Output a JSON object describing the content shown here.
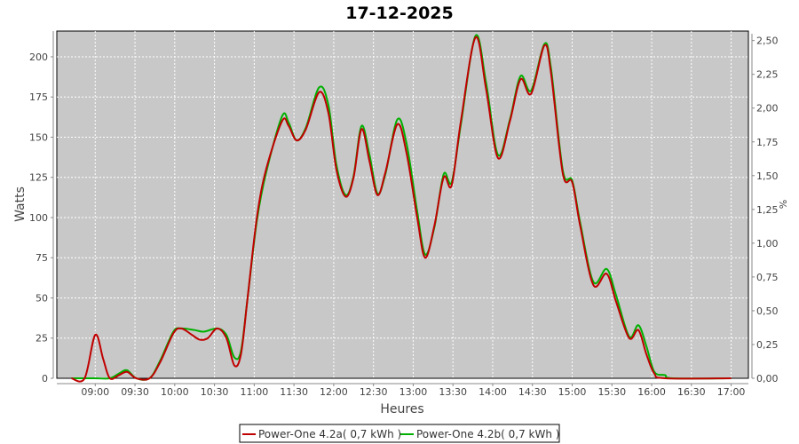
{
  "chart_data": {
    "type": "line",
    "title": "17-12-2025",
    "xlabel": "Heures",
    "ylabel": "Watts",
    "y2label": "%",
    "ylim": [
      0,
      216
    ],
    "y2lim": [
      0,
      2.57
    ],
    "xlim": [
      "08:31",
      "17:13"
    ],
    "grid": true,
    "legend": "bottom",
    "x_ticks": [
      "09:00",
      "09:30",
      "10:00",
      "10:30",
      "11:00",
      "11:30",
      "12:00",
      "12:30",
      "13:00",
      "13:30",
      "14:00",
      "14:30",
      "15:00",
      "15:30",
      "16:00",
      "16:30",
      "17:00"
    ],
    "y_ticks": [
      0,
      25,
      50,
      75,
      100,
      125,
      150,
      175,
      200
    ],
    "y2_ticks": [
      "0,00",
      "0,25",
      "0,50",
      "0,75",
      "1,00",
      "1,25",
      "1,50",
      "1,75",
      "2,00",
      "2,25",
      "2,50"
    ],
    "series": [
      {
        "name": "Power-One 4.2b( 0,7 kWh )",
        "color": "#00b000",
        "points": [
          [
            "08:42",
            0
          ],
          [
            "08:52",
            0
          ],
          [
            "09:00",
            0
          ],
          [
            "09:11",
            0
          ],
          [
            "09:18",
            3
          ],
          [
            "09:24",
            5
          ],
          [
            "09:31",
            0
          ],
          [
            "09:41",
            0
          ],
          [
            "09:49",
            11
          ],
          [
            "09:59",
            29
          ],
          [
            "10:05",
            31
          ],
          [
            "10:15",
            30
          ],
          [
            "10:22",
            29
          ],
          [
            "10:32",
            31
          ],
          [
            "10:39",
            27
          ],
          [
            "10:45",
            13
          ],
          [
            "10:50",
            17
          ],
          [
            "10:55",
            50
          ],
          [
            "11:02",
            98
          ],
          [
            "11:09",
            128
          ],
          [
            "11:21",
            163
          ],
          [
            "11:26",
            159
          ],
          [
            "11:32",
            148
          ],
          [
            "11:39",
            156
          ],
          [
            "11:49",
            181
          ],
          [
            "11:56",
            170
          ],
          [
            "12:02",
            133
          ],
          [
            "12:09",
            114
          ],
          [
            "12:15",
            126
          ],
          [
            "12:21",
            157
          ],
          [
            "12:27",
            139
          ],
          [
            "12:33",
            115
          ],
          [
            "12:39",
            127
          ],
          [
            "12:48",
            161
          ],
          [
            "12:55",
            146
          ],
          [
            "13:03",
            104
          ],
          [
            "13:09",
            77
          ],
          [
            "13:16",
            94
          ],
          [
            "13:23",
            127
          ],
          [
            "13:29",
            122
          ],
          [
            "13:36",
            158
          ],
          [
            "13:47",
            213
          ],
          [
            "13:55",
            184
          ],
          [
            "14:04",
            139
          ],
          [
            "14:13",
            161
          ],
          [
            "14:21",
            188
          ],
          [
            "14:29",
            179
          ],
          [
            "14:39",
            208
          ],
          [
            "14:44",
            193
          ],
          [
            "14:53",
            129
          ],
          [
            "15:00",
            123
          ],
          [
            "15:06",
            97
          ],
          [
            "15:16",
            60
          ],
          [
            "15:26",
            68
          ],
          [
            "15:33",
            52
          ],
          [
            "15:43",
            26
          ],
          [
            "15:50",
            33
          ],
          [
            "15:56",
            20
          ],
          [
            "16:02",
            4
          ],
          [
            "16:10",
            2
          ],
          [
            "16:16",
            0
          ],
          [
            "17:00",
            0
          ]
        ]
      },
      {
        "name": "Power-One 4.2a( 0,7 kWh )",
        "color": "#c00000",
        "points": [
          [
            "08:42",
            0
          ],
          [
            "08:52",
            0
          ],
          [
            "09:00",
            27
          ],
          [
            "09:06",
            12
          ],
          [
            "09:11",
            0
          ],
          [
            "09:18",
            2
          ],
          [
            "09:24",
            4
          ],
          [
            "09:31",
            0
          ],
          [
            "09:41",
            0
          ],
          [
            "09:49",
            10
          ],
          [
            "09:59",
            28
          ],
          [
            "10:05",
            31
          ],
          [
            "10:13",
            27
          ],
          [
            "10:19",
            24
          ],
          [
            "10:25",
            25
          ],
          [
            "10:32",
            31
          ],
          [
            "10:39",
            25
          ],
          [
            "10:45",
            8
          ],
          [
            "10:50",
            15
          ],
          [
            "10:55",
            50
          ],
          [
            "11:02",
            100
          ],
          [
            "11:09",
            130
          ],
          [
            "11:21",
            160
          ],
          [
            "11:26",
            157
          ],
          [
            "11:32",
            148
          ],
          [
            "11:39",
            155
          ],
          [
            "11:49",
            178
          ],
          [
            "11:56",
            165
          ],
          [
            "12:02",
            130
          ],
          [
            "12:09",
            113
          ],
          [
            "12:15",
            125
          ],
          [
            "12:21",
            155
          ],
          [
            "12:27",
            135
          ],
          [
            "12:33",
            114
          ],
          [
            "12:39",
            128
          ],
          [
            "12:48",
            158
          ],
          [
            "12:55",
            140
          ],
          [
            "13:03",
            100
          ],
          [
            "13:09",
            75
          ],
          [
            "13:16",
            95
          ],
          [
            "13:23",
            125
          ],
          [
            "13:29",
            120
          ],
          [
            "13:36",
            160
          ],
          [
            "13:47",
            212
          ],
          [
            "13:55",
            180
          ],
          [
            "14:04",
            137
          ],
          [
            "14:13",
            160
          ],
          [
            "14:21",
            186
          ],
          [
            "14:29",
            177
          ],
          [
            "14:39",
            207
          ],
          [
            "14:44",
            190
          ],
          [
            "14:53",
            127
          ],
          [
            "15:00",
            122
          ],
          [
            "15:06",
            95
          ],
          [
            "15:16",
            58
          ],
          [
            "15:26",
            65
          ],
          [
            "15:33",
            48
          ],
          [
            "15:43",
            25
          ],
          [
            "15:50",
            30
          ],
          [
            "15:56",
            15
          ],
          [
            "16:02",
            3
          ],
          [
            "16:10",
            0
          ],
          [
            "17:00",
            0
          ]
        ]
      }
    ],
    "legend_entries": [
      {
        "label": "Power-One 4.2a( 0,7 kWh )",
        "color": "#c00000"
      },
      {
        "label": "Power-One 4.2b( 0,7 kWh )",
        "color": "#00b000"
      }
    ]
  }
}
